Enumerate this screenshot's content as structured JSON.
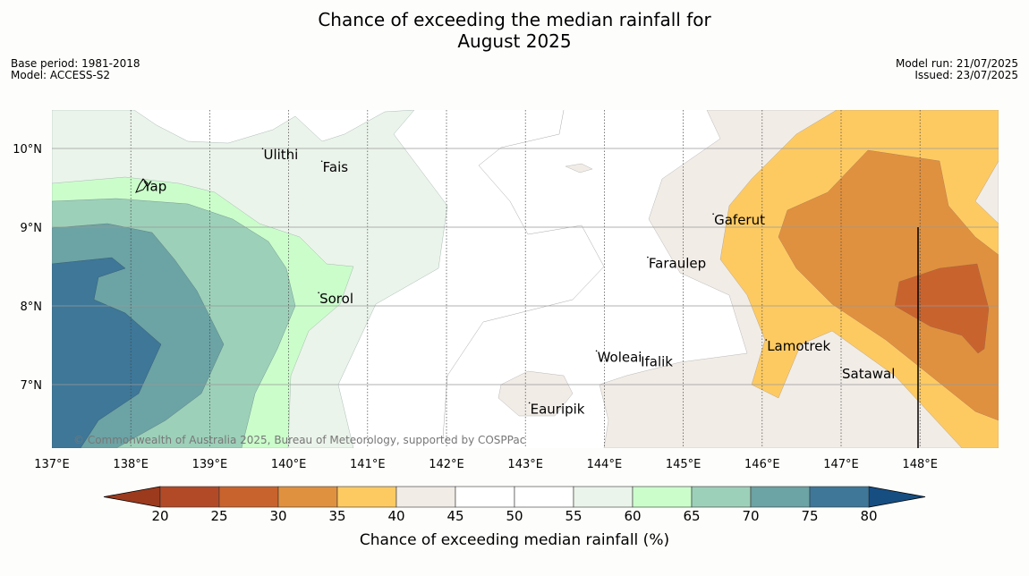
{
  "header": {
    "title_line1": "Chance of exceeding the median rainfall for",
    "title_line2": "August 2025",
    "base_period": "Base period: 1981-2018",
    "model": "Model: ACCESS-S2",
    "model_run": "Model run: 21/07/2025",
    "issued": "Issued: 23/07/2025"
  },
  "map": {
    "lon_range": [
      137,
      149
    ],
    "lat_range": [
      6.2,
      10.5
    ],
    "lon_ticks": [
      {
        "value": 137,
        "label": "137°E"
      },
      {
        "value": 138,
        "label": "138°E"
      },
      {
        "value": 139,
        "label": "139°E"
      },
      {
        "value": 140,
        "label": "140°E"
      },
      {
        "value": 141,
        "label": "141°E"
      },
      {
        "value": 142,
        "label": "142°E"
      },
      {
        "value": 143,
        "label": "143°E"
      },
      {
        "value": 144,
        "label": "144°E"
      },
      {
        "value": 145,
        "label": "145°E"
      },
      {
        "value": 146,
        "label": "146°E"
      },
      {
        "value": 147,
        "label": "147°E"
      },
      {
        "value": 148,
        "label": "148°E"
      }
    ],
    "lat_ticks": [
      {
        "value": 10,
        "label": "10°N"
      },
      {
        "value": 9,
        "label": "9°N"
      },
      {
        "value": 8,
        "label": "8°N"
      },
      {
        "value": 7,
        "label": "7°N"
      }
    ],
    "places": [
      {
        "name": "Yap",
        "lon": 138.15,
        "lat": 9.53
      },
      {
        "name": "Ulithi",
        "lon": 139.67,
        "lat": 9.93
      },
      {
        "name": "Fais",
        "lon": 140.42,
        "lat": 9.77
      },
      {
        "name": "Sorol",
        "lon": 140.38,
        "lat": 8.1
      },
      {
        "name": "Gaferut",
        "lon": 145.38,
        "lat": 9.1
      },
      {
        "name": "Faraulep",
        "lon": 144.55,
        "lat": 8.55
      },
      {
        "name": "Woleai",
        "lon": 143.9,
        "lat": 7.36
      },
      {
        "name": "Ifalik",
        "lon": 144.45,
        "lat": 7.3
      },
      {
        "name": "Lamotrek",
        "lon": 146.05,
        "lat": 7.5
      },
      {
        "name": "Satawal",
        "lon": 147.0,
        "lat": 7.15
      },
      {
        "name": "Eauripik",
        "lon": 143.05,
        "lat": 6.7
      }
    ],
    "copyright": "© Commonwealth of Australia 2025, Bureau of Meteorology, supported by COSPPac"
  },
  "colorbar": {
    "label": "Chance of exceeding median rainfall (%)",
    "ticks": [
      "20",
      "25",
      "30",
      "35",
      "40",
      "45",
      "50",
      "55",
      "60",
      "65",
      "70",
      "75",
      "80"
    ],
    "colors": [
      "#b24a27",
      "#c9632e",
      "#e0913f",
      "#fdca62",
      "#f1ece6",
      "#ffffff",
      "#ffffff",
      "#ebf4ea",
      "#cbfdcb",
      "#9dd0b9",
      "#6ca3a5",
      "#3e7798"
    ],
    "under_color": "#9c3a1e",
    "over_color": "#164e82"
  }
}
